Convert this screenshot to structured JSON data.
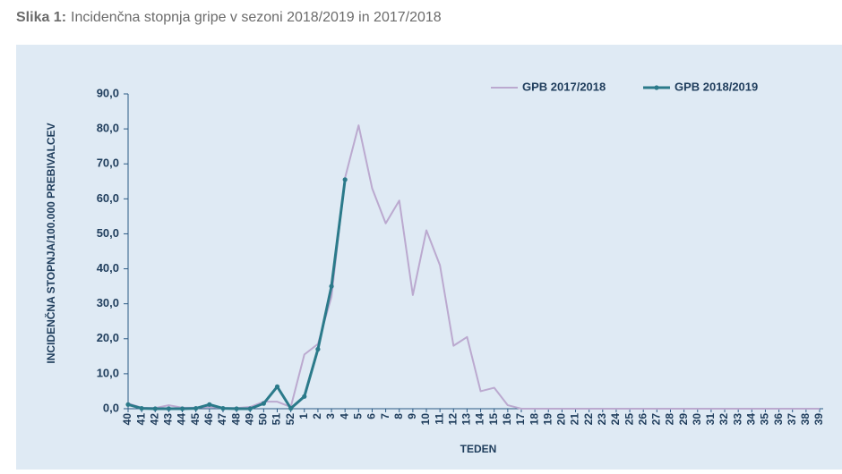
{
  "chart_data": {
    "type": "line",
    "title_prefix": "Slika 1:",
    "title": "Incidenčna stopnja gripe v sezoni 2018/2019 in 2017/2018",
    "x_label": "TEDEN",
    "y_label": "INCIDENČNA STOPNJA/100.000 PREBIVALCEV",
    "categories": [
      "40",
      "41",
      "42",
      "43",
      "44",
      "45",
      "46",
      "47",
      "48",
      "49",
      "50",
      "51",
      "52",
      "1",
      "2",
      "3",
      "4",
      "5",
      "6",
      "7",
      "8",
      "9",
      "10",
      "11",
      "12",
      "13",
      "14",
      "15",
      "16",
      "17",
      "18",
      "19",
      "20",
      "21",
      "22",
      "23",
      "24",
      "25",
      "26",
      "27",
      "28",
      "29",
      "30",
      "31",
      "32",
      "33",
      "34",
      "35",
      "36",
      "37",
      "38",
      "39"
    ],
    "series": [
      {
        "name": "GPB 2017/2018",
        "color": "#bba9cf",
        "markers": false,
        "values": [
          1.5,
          0.3,
          0.2,
          1.0,
          0.3,
          0.3,
          0.5,
          0.2,
          0.2,
          0.5,
          2.0,
          2.0,
          0.5,
          15.5,
          18.5,
          32,
          66,
          81,
          63,
          53,
          59.5,
          32.5,
          51,
          41,
          18,
          20.5,
          5,
          6,
          1,
          0,
          0,
          0,
          0,
          0,
          0,
          0,
          0,
          0,
          0,
          0,
          0,
          0,
          0,
          0,
          0,
          0,
          0,
          0,
          0,
          0,
          0,
          0
        ]
      },
      {
        "name": "GPB 2018/2019",
        "color": "#2b7a8a",
        "markers": true,
        "values": [
          1.2,
          0.1,
          0,
          0,
          0,
          0.1,
          1.2,
          0.1,
          0,
          0,
          1.5,
          6.3,
          0.1,
          3.5,
          17,
          35,
          65.5,
          null,
          null,
          null,
          null,
          null,
          null,
          null,
          null,
          null,
          null,
          null,
          null,
          null,
          null,
          null,
          null,
          null,
          null,
          null,
          null,
          null,
          null,
          null,
          null,
          null,
          null,
          null,
          null,
          null,
          null,
          null,
          null,
          null,
          null,
          null
        ]
      }
    ],
    "ylim": [
      0,
      90
    ],
    "yticks": [
      {
        "value": 0,
        "label": "0,0"
      },
      {
        "value": 10,
        "label": "10,0"
      },
      {
        "value": 20,
        "label": "20,0"
      },
      {
        "value": 30,
        "label": "30,0"
      },
      {
        "value": 40,
        "label": "40,0"
      },
      {
        "value": 50,
        "label": "50,0"
      },
      {
        "value": 60,
        "label": "60,0"
      },
      {
        "value": 70,
        "label": "70,0"
      },
      {
        "value": 80,
        "label": "80,0"
      },
      {
        "value": 90,
        "label": "90,0"
      }
    ],
    "grid": false,
    "legend": "top-right"
  }
}
